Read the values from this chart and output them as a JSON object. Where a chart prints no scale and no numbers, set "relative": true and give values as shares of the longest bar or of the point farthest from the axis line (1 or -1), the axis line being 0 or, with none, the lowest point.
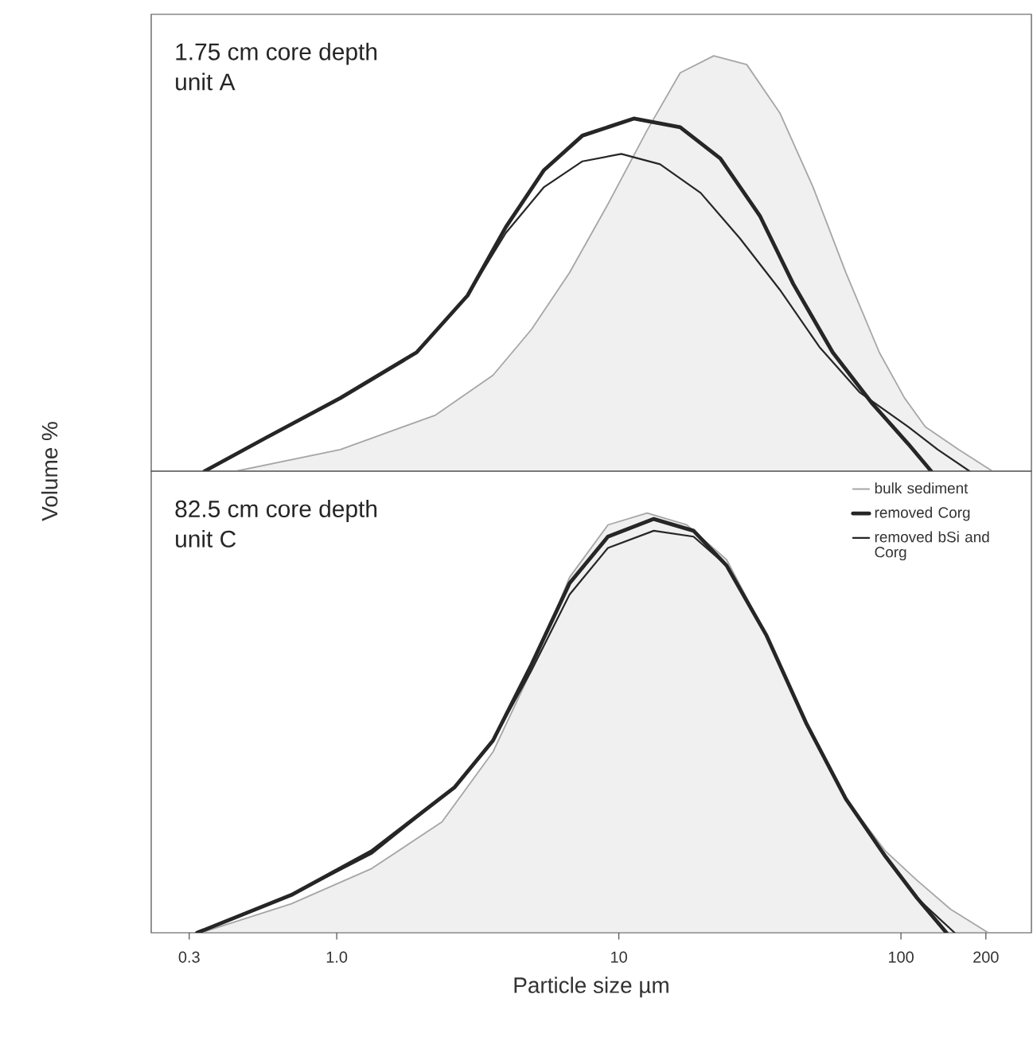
{
  "chart_data": [
    {
      "type": "line",
      "relative": true,
      "log": "x",
      "xlim": [
        0.22,
        290
      ],
      "tick_labels": false,
      "ylabel": "Volume %",
      "annotations": [
        "1.75 cm core depth",
        "unit A"
      ],
      "series": [
        {
          "type": "area",
          "color": "#a6a6a6",
          "x": [
            0.44,
            1.03,
            2.24,
            3.58,
            4.9,
            6.69,
            9.15,
            12.6,
            16.5,
            21.7,
            28.4,
            37.2,
            48.8,
            63.8,
            83.8,
            103,
            122,
            160,
            211
          ],
          "values": [
            0,
            0.052,
            0.135,
            0.231,
            0.341,
            0.478,
            0.643,
            0.821,
            0.959,
            1,
            0.979,
            0.863,
            0.684,
            0.478,
            0.286,
            0.176,
            0.107,
            0.052,
            0
          ]
        },
        {
          "color": "#262626",
          "x": [
            0.34,
            0.56,
            1.03,
            1.92,
            2.91,
            3.98,
            5.43,
            7.43,
            11.3,
            16.5,
            22.9,
            31.6,
            41.5,
            57.3,
            79.3,
            106,
            128
          ],
          "values": [
            0,
            0.08,
            0.176,
            0.286,
            0.423,
            0.588,
            0.725,
            0.808,
            0.849,
            0.828,
            0.753,
            0.615,
            0.451,
            0.286,
            0.162,
            0.066,
            0
          ]
        },
        {
          "color": "#262626",
          "x": [
            0.34,
            0.56,
            1.03,
            1.92,
            2.91,
            3.98,
            5.43,
            7.43,
            10.2,
            14.0,
            19.5,
            26.9,
            37.2,
            51.4,
            71.3,
            106,
            135,
            175
          ],
          "values": [
            0,
            0.08,
            0.176,
            0.286,
            0.423,
            0.574,
            0.684,
            0.746,
            0.764,
            0.739,
            0.67,
            0.56,
            0.437,
            0.299,
            0.19,
            0.107,
            0.052,
            0
          ]
        }
      ]
    },
    {
      "type": "line",
      "relative": true,
      "log": "x",
      "xlim": [
        0.22,
        290
      ],
      "tick_labels": "x",
      "xlabel": "Particle size µm",
      "legend": "top right",
      "annotations": [
        "82.5 cm core depth",
        "unit C"
      ],
      "xticks": [
        0.3,
        {
          "value": 1,
          "label": "1.0"
        },
        10,
        100,
        200
      ],
      "series": [
        {
          "type": "area",
          "name": "bulk sediment",
          "color": "#a6a6a6",
          "x": [
            0.33,
            0.69,
            1.33,
            2.36,
            3.58,
            4.9,
            6.69,
            9.15,
            12.6,
            17.4,
            24.1,
            33.4,
            46.1,
            63.8,
            88.3,
            114,
            150,
            204
          ],
          "values": [
            0,
            0.069,
            0.153,
            0.264,
            0.431,
            0.625,
            0.847,
            0.972,
            1,
            0.972,
            0.889,
            0.708,
            0.5,
            0.319,
            0.194,
            0.125,
            0.056,
            0
          ]
        },
        {
          "name": "removed Corg",
          "color": "#262626",
          "x": [
            0.32,
            0.69,
            1.33,
            2.62,
            3.58,
            4.9,
            6.69,
            9.15,
            13.3,
            18.4,
            24.1,
            33.4,
            46.1,
            63.8,
            88.3,
            114,
            145
          ],
          "values": [
            0,
            0.09,
            0.194,
            0.347,
            0.458,
            0.639,
            0.833,
            0.944,
            0.986,
            0.958,
            0.875,
            0.708,
            0.5,
            0.319,
            0.181,
            0.083,
            0
          ]
        },
        {
          "name": "removed bSi and Corg",
          "color": "#262626",
          "x": [
            0.32,
            0.69,
            1.33,
            2.62,
            3.58,
            4.9,
            6.69,
            9.15,
            13.3,
            18.4,
            24.1,
            33.4,
            46.1,
            63.8,
            88.3,
            114,
            155
          ],
          "values": [
            0,
            0.09,
            0.188,
            0.347,
            0.458,
            0.625,
            0.806,
            0.917,
            0.958,
            0.944,
            0.875,
            0.708,
            0.5,
            0.319,
            0.181,
            0.083,
            0
          ]
        }
      ]
    }
  ]
}
